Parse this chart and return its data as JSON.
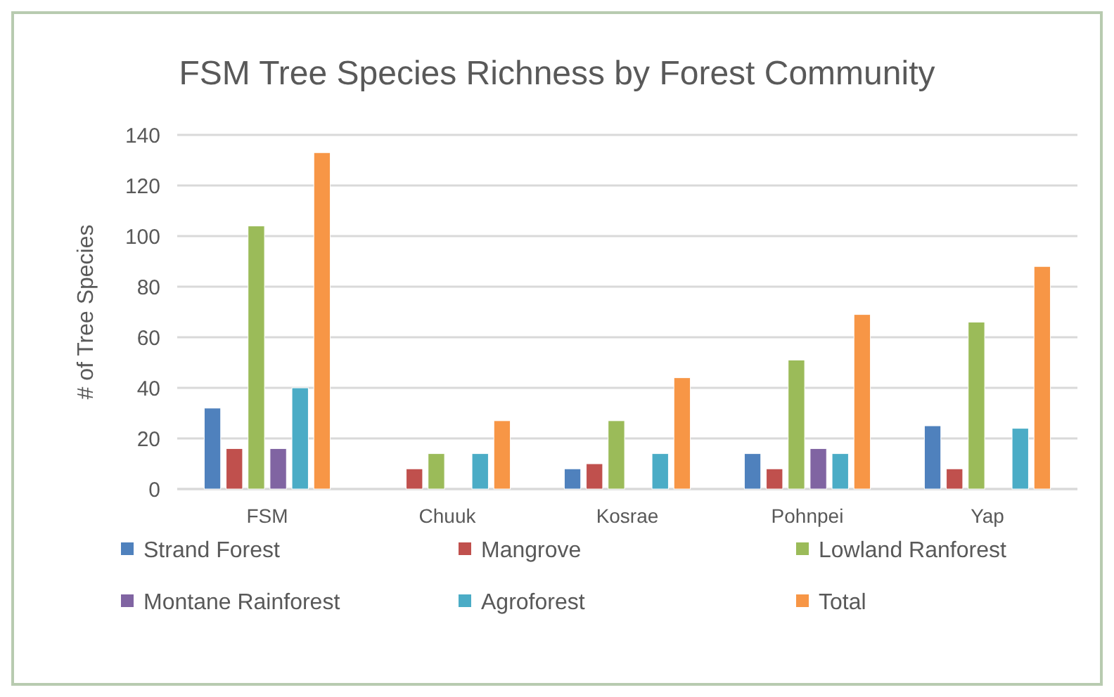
{
  "chart_data": {
    "type": "bar",
    "title": "FSM Tree Species Richness by Forest Community",
    "ylabel": "# of Tree Species",
    "categories": [
      "FSM",
      "Chuuk",
      "Kosrae",
      "Pohnpei",
      "Yap"
    ],
    "series": [
      {
        "name": "Strand Forest",
        "color": "#4f81bd",
        "values": [
          32,
          null,
          8,
          14,
          25
        ]
      },
      {
        "name": "Mangrove",
        "color": "#c0504d",
        "values": [
          16,
          8,
          10,
          8,
          8
        ]
      },
      {
        "name": "Lowland Ranforest",
        "color": "#9bbb59",
        "values": [
          104,
          14,
          27,
          51,
          66
        ]
      },
      {
        "name": "Montane Rainforest",
        "color": "#8064a2",
        "values": [
          16,
          null,
          null,
          16,
          null
        ]
      },
      {
        "name": "Agroforest",
        "color": "#4bacc6",
        "values": [
          40,
          14,
          14,
          14,
          24
        ]
      },
      {
        "name": "Total",
        "color": "#f79646",
        "values": [
          133,
          27,
          44,
          69,
          88
        ]
      }
    ],
    "ylim": [
      0,
      140
    ],
    "yticks": [
      0,
      20,
      40,
      60,
      80,
      100,
      120,
      140
    ],
    "grid": "y",
    "legend": "bottom"
  }
}
